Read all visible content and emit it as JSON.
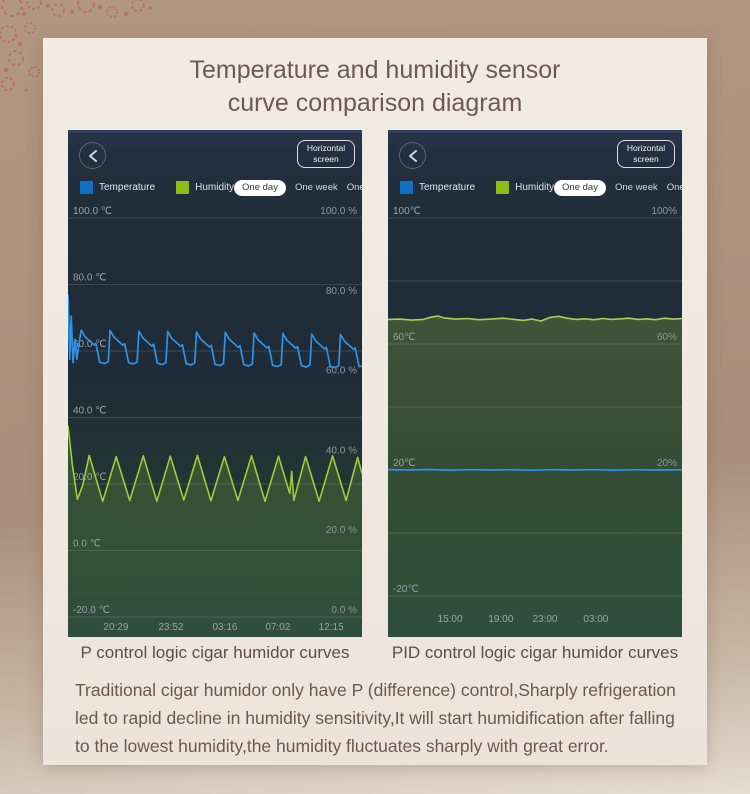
{
  "page": {
    "title_line1": "Temperature and humidity sensor",
    "title_line2": "curve comparison diagram"
  },
  "panels": [
    {
      "back_label": "back",
      "horizontal_screen_label": "Horizontal screen",
      "legend": [
        {
          "label": "Temperature",
          "color": "#1170c4"
        },
        {
          "label": "Humidity",
          "color": "#8cbc17"
        }
      ],
      "tabs": [
        {
          "label": "One day",
          "active": true
        },
        {
          "label": "One week",
          "active": false
        },
        {
          "label": "One month",
          "active": false
        }
      ],
      "caption": "P control logic cigar humidor curves"
    },
    {
      "back_label": "back",
      "horizontal_screen_label": "Horizontal screen",
      "legend": [
        {
          "label": "Temperature",
          "color": "#1170c4"
        },
        {
          "label": "Humidity",
          "color": "#8cbc17"
        }
      ],
      "tabs": [
        {
          "label": "One day",
          "active": true
        },
        {
          "label": "One week",
          "active": false
        },
        {
          "label": "One month",
          "active": false
        }
      ],
      "caption": "PID control logic cigar humidor curves"
    }
  ],
  "description": "Traditional cigar humidor only have P (difference) control,Sharply refrigeration led to rapid decline in humidity sensitivity,It will start humidification after falling to the lowest humidity,the humidity fluctuates sharply with great error.",
  "chart_data": [
    {
      "type": "line",
      "title": "P control logic cigar humidor curves",
      "legend_position": "top",
      "grid": true,
      "temp_axis": {
        "side": "left",
        "unit": "℃",
        "range": [
          100,
          -20
        ],
        "ticks": [
          [
            100,
            "100.0 ℃"
          ],
          [
            80,
            "80.0 ℃"
          ],
          [
            60,
            "60.0 ℃"
          ],
          [
            40,
            "40.0 ℃"
          ],
          [
            20,
            "20.0 ℃"
          ],
          [
            0,
            "0.0 ℃"
          ],
          [
            -20,
            "-20.0 ℃"
          ]
        ]
      },
      "humidity_axis": {
        "side": "right",
        "unit": "%",
        "range": [
          100,
          0
        ],
        "ticks": [
          [
            100,
            "100.0 %"
          ],
          [
            80,
            "80.0 %"
          ],
          [
            60,
            "60.0 %"
          ],
          [
            40,
            "40.0 %"
          ],
          [
            20,
            "20.0 %"
          ],
          [
            0,
            "0.0 %"
          ]
        ]
      },
      "x_axis_times": [
        [
          16.3,
          "20:29"
        ],
        [
          35.0,
          "23:52"
        ],
        [
          53.4,
          "03:16"
        ],
        [
          71.4,
          "07:02"
        ],
        [
          89.5,
          "12:15"
        ]
      ],
      "series": [
        {
          "name": "Temperature",
          "unit": "℃",
          "color": "#2e93e6",
          "points": [
            [
              0,
              77
            ],
            [
              0.6,
              57.5
            ],
            [
              1.1,
              70.5
            ],
            [
              1.7,
              56.5
            ],
            [
              2.4,
              63.5
            ],
            [
              3,
              57.5
            ],
            [
              3.7,
              62
            ],
            [
              4.5,
              66.3
            ],
            [
              5.9,
              64.2
            ],
            [
              7.4,
              63
            ],
            [
              8.9,
              61.8
            ],
            [
              9.5,
              62.3
            ],
            [
              10.8,
              56.6
            ],
            [
              12.4,
              56.2
            ],
            [
              13.7,
              56.8
            ],
            [
              14.3,
              66.2
            ],
            [
              15.7,
              64.1
            ],
            [
              17.2,
              62.9
            ],
            [
              18.7,
              61.7
            ],
            [
              19.3,
              62.2
            ],
            [
              20.6,
              56.5
            ],
            [
              22.2,
              56.1
            ],
            [
              23.5,
              56.7
            ],
            [
              24.1,
              66
            ],
            [
              25.5,
              63.9
            ],
            [
              27,
              62.7
            ],
            [
              28.5,
              61.5
            ],
            [
              29.1,
              62
            ],
            [
              30.4,
              56.3
            ],
            [
              32,
              55.9
            ],
            [
              33.3,
              56.5
            ],
            [
              33.9,
              65.9
            ],
            [
              35.3,
              63.8
            ],
            [
              36.8,
              62.6
            ],
            [
              38.3,
              61.4
            ],
            [
              38.9,
              61.9
            ],
            [
              40.2,
              56.2
            ],
            [
              41.8,
              55.8
            ],
            [
              43.1,
              56.4
            ],
            [
              43.7,
              65.7
            ],
            [
              45.1,
              63.6
            ],
            [
              46.6,
              62.4
            ],
            [
              48.1,
              61.2
            ],
            [
              48.7,
              61.7
            ],
            [
              50,
              56
            ],
            [
              51.6,
              55.6
            ],
            [
              52.9,
              56.2
            ],
            [
              53.5,
              65.6
            ],
            [
              54.9,
              63.5
            ],
            [
              56.4,
              62.3
            ],
            [
              57.9,
              61.1
            ],
            [
              58.5,
              61.6
            ],
            [
              59.8,
              55.9
            ],
            [
              61.4,
              55.5
            ],
            [
              62.7,
              56.1
            ],
            [
              63.3,
              65.4
            ],
            [
              64.7,
              63.3
            ],
            [
              66.2,
              62.1
            ],
            [
              67.7,
              60.9
            ],
            [
              68.3,
              61.4
            ],
            [
              69.6,
              55.7
            ],
            [
              71.2,
              55.3
            ],
            [
              72.5,
              55.9
            ],
            [
              73.1,
              65.3
            ],
            [
              74.5,
              63.2
            ],
            [
              76,
              62
            ],
            [
              77.5,
              60.8
            ],
            [
              78.1,
              61.3
            ],
            [
              79.4,
              55.6
            ],
            [
              81,
              55.2
            ],
            [
              82.3,
              55.8
            ],
            [
              82.9,
              65.1
            ],
            [
              84.3,
              63
            ],
            [
              85.8,
              61.8
            ],
            [
              87.3,
              60.6
            ],
            [
              87.9,
              61.1
            ],
            [
              89.2,
              55.4
            ],
            [
              90.8,
              55
            ],
            [
              92.1,
              55.6
            ],
            [
              92.7,
              65
            ],
            [
              94.1,
              62.9
            ],
            [
              95.6,
              61.7
            ],
            [
              97.1,
              60.5
            ],
            [
              97.7,
              61
            ],
            [
              99,
              55.3
            ],
            [
              100,
              55.5
            ]
          ]
        },
        {
          "name": "Humidity",
          "unit": "%",
          "color": "#a3cb39",
          "points": [
            [
              0,
              48
            ],
            [
              1.5,
              38
            ],
            [
              3.2,
              29.5
            ],
            [
              5,
              33
            ],
            [
              7.2,
              40.5
            ],
            [
              11.8,
              29
            ],
            [
              16.4,
              40.2
            ],
            [
              21,
              29.2
            ],
            [
              25.6,
              40.4
            ],
            [
              30.2,
              29
            ],
            [
              34.8,
              40.3
            ],
            [
              39.4,
              29.3
            ],
            [
              44,
              40.5
            ],
            [
              48.6,
              29.1
            ],
            [
              53.2,
              40.2
            ],
            [
              57.8,
              29.2
            ],
            [
              62.4,
              40.4
            ],
            [
              67,
              29
            ],
            [
              71.6,
              40.3
            ],
            [
              75.4,
              31
            ],
            [
              76.1,
              36.5
            ],
            [
              76.8,
              29.2
            ],
            [
              80.8,
              40.2
            ],
            [
              85.4,
              29
            ],
            [
              90,
              40.4
            ],
            [
              94.6,
              29.2
            ],
            [
              98.5,
              40
            ],
            [
              100,
              36
            ]
          ]
        }
      ]
    },
    {
      "type": "line",
      "title": "PID control logic cigar humidor curves",
      "legend_position": "top",
      "grid": true,
      "temp_axis": {
        "side": "left",
        "unit": "℃",
        "range": [
          100,
          -20
        ],
        "ticks": [
          [
            100,
            "100℃"
          ],
          [
            60,
            "60℃"
          ],
          [
            20,
            "20℃"
          ],
          [
            -20,
            "-20℃"
          ]
        ]
      },
      "humidity_axis": {
        "side": "right",
        "unit": "%",
        "range": [
          100,
          -20
        ],
        "ticks": [
          [
            100,
            "100%"
          ],
          [
            60,
            "60%"
          ],
          [
            20,
            "20%"
          ]
        ]
      },
      "x_axis_times": [
        [
          21.1,
          "15:00"
        ],
        [
          38.4,
          "19:00"
        ],
        [
          53.4,
          "23:00"
        ],
        [
          70.7,
          "03:00"
        ]
      ],
      "series": [
        {
          "name": "Temperature",
          "unit": "℃",
          "color": "#2e93e6",
          "points": [
            [
              0,
              20.1
            ],
            [
              7,
              20
            ],
            [
              14,
              20.15
            ],
            [
              21,
              19.95
            ],
            [
              28,
              20.1
            ],
            [
              35,
              20
            ],
            [
              42,
              20.05
            ],
            [
              49,
              19.95
            ],
            [
              56,
              20.1
            ],
            [
              63,
              20
            ],
            [
              70,
              20.1
            ],
            [
              77,
              19.95
            ],
            [
              84,
              20.05
            ],
            [
              91,
              20
            ],
            [
              100,
              20.05
            ]
          ]
        },
        {
          "name": "Humidity",
          "unit": "%",
          "color": "#a9cf56",
          "points": [
            [
              0,
              67.8
            ],
            [
              4,
              67.9
            ],
            [
              8,
              67.6
            ],
            [
              12,
              67.8
            ],
            [
              15,
              68.6
            ],
            [
              17,
              68.9
            ],
            [
              19,
              68.3
            ],
            [
              23,
              67.9
            ],
            [
              27,
              68.1
            ],
            [
              31,
              67.7
            ],
            [
              35,
              67.9
            ],
            [
              39,
              68.2
            ],
            [
              43,
              67.8
            ],
            [
              46,
              67.5
            ],
            [
              49,
              67.9
            ],
            [
              52,
              67.3
            ],
            [
              55,
              68.4
            ],
            [
              58,
              68.8
            ],
            [
              61,
              68.2
            ],
            [
              64,
              67.8
            ],
            [
              67,
              68
            ],
            [
              70,
              67.7
            ],
            [
              73,
              68.1
            ],
            [
              76,
              67.8
            ],
            [
              79,
              68
            ],
            [
              82,
              68.2
            ],
            [
              85,
              67.8
            ],
            [
              88,
              68
            ],
            [
              91,
              67.7
            ],
            [
              94,
              68.2
            ],
            [
              97,
              67.9
            ],
            [
              100,
              68.1
            ]
          ]
        }
      ]
    }
  ]
}
